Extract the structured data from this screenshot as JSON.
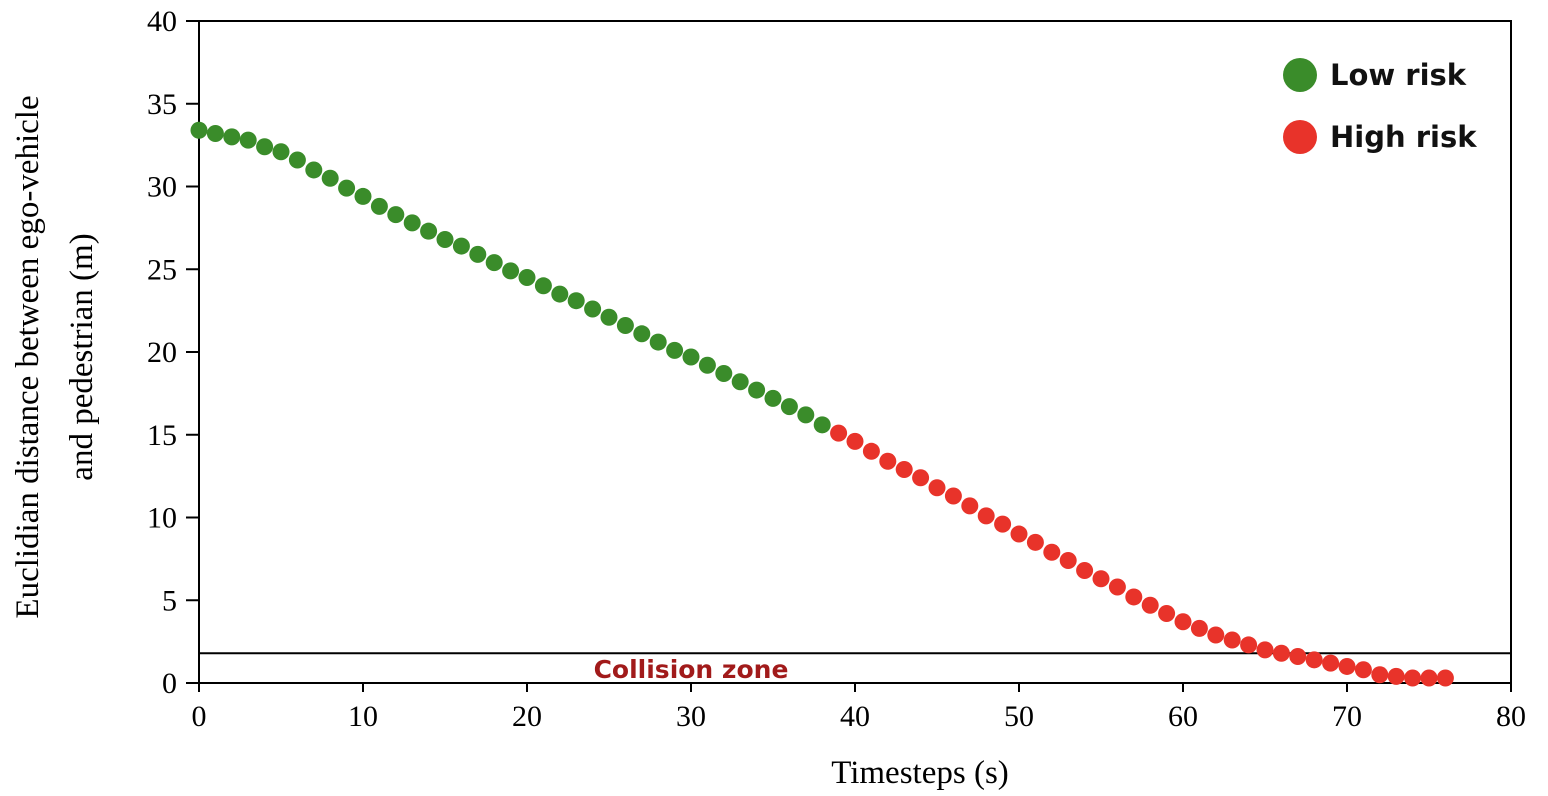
{
  "chart_data": {
    "type": "scatter",
    "title": "",
    "xlabel": "Timesteps (s)",
    "ylabel_lines": [
      "Euclidian distance between ego-vehicle",
      "and pedestrian (m)"
    ],
    "xlim": [
      0,
      80
    ],
    "ylim": [
      0,
      40
    ],
    "xticks": [
      0,
      10,
      20,
      30,
      40,
      50,
      60,
      70,
      80
    ],
    "yticks": [
      0,
      5,
      10,
      15,
      20,
      25,
      30,
      35,
      40
    ],
    "grid": false,
    "legend_position": "top-right",
    "collision_zone": {
      "label": "Collision zone",
      "threshold": 1.8
    },
    "series": [
      {
        "name": "Low risk",
        "color": "#3a8c2a",
        "x": [
          0,
          1,
          2,
          3,
          4,
          5,
          6,
          7,
          8,
          9,
          10,
          11,
          12,
          13,
          14,
          15,
          16,
          17,
          18,
          19,
          20,
          21,
          22,
          23,
          24,
          25,
          26,
          27,
          28,
          29,
          30,
          31,
          32,
          33,
          34,
          35,
          36,
          37,
          38
        ],
        "y": [
          33.4,
          33.2,
          33.0,
          32.8,
          32.4,
          32.1,
          31.6,
          31.0,
          30.5,
          29.9,
          29.4,
          28.8,
          28.3,
          27.8,
          27.3,
          26.8,
          26.4,
          25.9,
          25.4,
          24.9,
          24.5,
          24.0,
          23.5,
          23.1,
          22.6,
          22.1,
          21.6,
          21.1,
          20.6,
          20.1,
          19.7,
          19.2,
          18.7,
          18.2,
          17.7,
          17.2,
          16.7,
          16.2,
          15.6
        ]
      },
      {
        "name": "High risk",
        "color": "#e8332a",
        "x": [
          39,
          40,
          41,
          42,
          43,
          44,
          45,
          46,
          47,
          48,
          49,
          50,
          51,
          52,
          53,
          54,
          55,
          56,
          57,
          58,
          59,
          60,
          61,
          62,
          63,
          64,
          65,
          66,
          67,
          68,
          69,
          70,
          71,
          72,
          73,
          74,
          75,
          76
        ],
        "y": [
          15.1,
          14.6,
          14.0,
          13.4,
          12.9,
          12.4,
          11.8,
          11.3,
          10.7,
          10.1,
          9.6,
          9.0,
          8.5,
          7.9,
          7.4,
          6.8,
          6.3,
          5.8,
          5.2,
          4.7,
          4.2,
          3.7,
          3.3,
          2.9,
          2.6,
          2.3,
          2.0,
          1.8,
          1.6,
          1.4,
          1.2,
          1.0,
          0.8,
          0.5,
          0.4,
          0.3,
          0.3,
          0.3
        ]
      }
    ]
  }
}
